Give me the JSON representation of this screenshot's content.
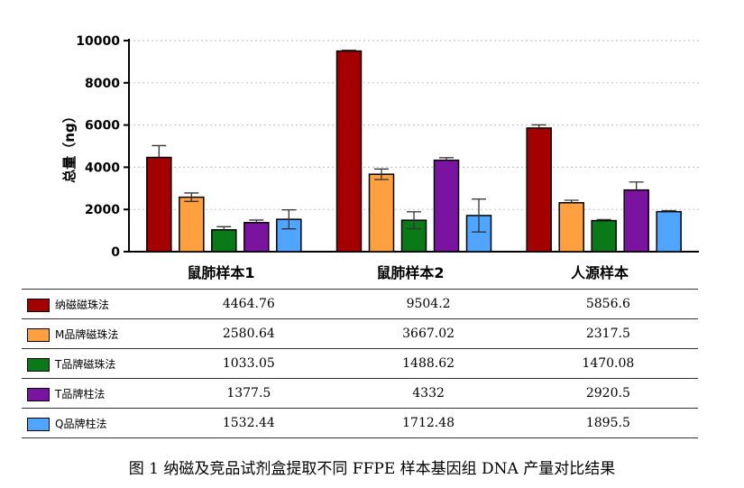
{
  "caption": "图 1 纳磁及竞品试剂盒提取不同 FFPE 样本基因组 DNA 产量对比结果",
  "chart_data": {
    "type": "bar",
    "ylabel": "总量（ng）",
    "ylim": [
      0,
      10000
    ],
    "yticks": [
      0,
      2000,
      4000,
      6000,
      8000,
      10000
    ],
    "grid": "dotted horizontal",
    "categories": [
      "鼠肺样本1",
      "鼠肺样本2",
      "人源样本"
    ],
    "series": [
      {
        "name": "纳磁磁珠法",
        "color": "#a50000",
        "values": [
          4464.76,
          9504.2,
          5856.6
        ],
        "labels": [
          "4464.76",
          "9504.2",
          "5856.6"
        ],
        "err_hi": [
          560,
          40,
          150
        ],
        "err_lo": [
          0,
          0,
          0
        ]
      },
      {
        "name": "M品牌磁珠法",
        "color": "#ffa040",
        "values": [
          2580.64,
          3667.02,
          2317.5
        ],
        "labels": [
          "2580.64",
          "3667.02",
          "2317.5"
        ],
        "err_hi": [
          200,
          250,
          120
        ],
        "err_lo": [
          200,
          250,
          0
        ]
      },
      {
        "name": "T品牌磁珠法",
        "color": "#0a7a18",
        "values": [
          1033.05,
          1488.62,
          1470.08
        ],
        "labels": [
          "1033.05",
          "1488.62",
          "1470.08"
        ],
        "err_hi": [
          150,
          400,
          50
        ],
        "err_lo": [
          0,
          400,
          0
        ]
      },
      {
        "name": "T品牌柱法",
        "color": "#7a14a0",
        "values": [
          1377.5,
          4332,
          2920.5
        ],
        "labels": [
          "1377.5",
          "4332",
          "2920.5"
        ],
        "err_hi": [
          120,
          120,
          380
        ],
        "err_lo": [
          0,
          0,
          0
        ]
      },
      {
        "name": "Q品牌柱法",
        "color": "#4fa5ff",
        "values": [
          1532.44,
          1712.48,
          1895.5
        ],
        "labels": [
          "1532.44",
          "1712.48",
          "1895.5"
        ],
        "err_hi": [
          450,
          780,
          50
        ],
        "err_lo": [
          450,
          780,
          0
        ]
      }
    ]
  }
}
